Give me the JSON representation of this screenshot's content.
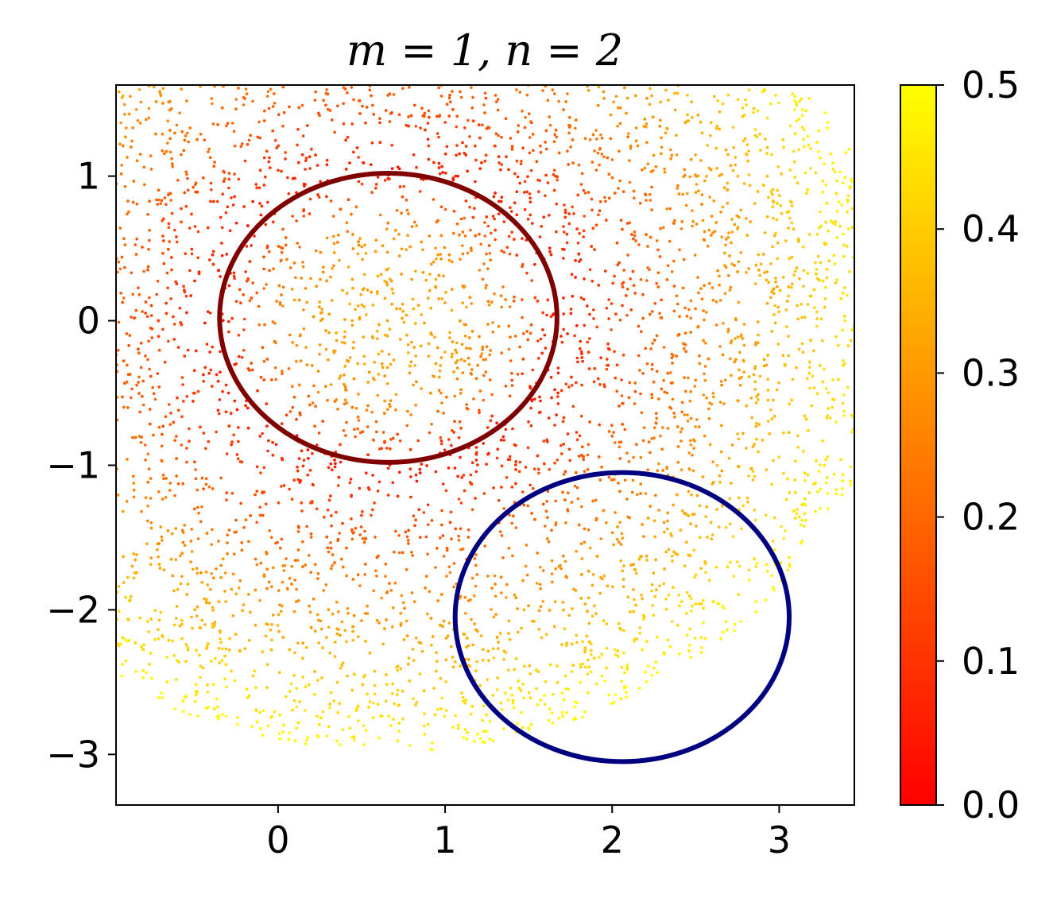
{
  "chart_data": {
    "type": "scatter",
    "title": "m = 1, n = 2",
    "xlabel": "",
    "ylabel": "",
    "xlim": [
      -0.97,
      3.45
    ],
    "ylim": [
      -3.35,
      1.63
    ],
    "x_ticks": [
      0,
      1,
      2,
      3
    ],
    "y_ticks": [
      -3,
      -2,
      -1,
      0,
      1
    ],
    "grid": false,
    "colorbar": {
      "colormap": "autumn",
      "range": [
        0.0,
        0.5
      ],
      "ticks": [
        "0.0",
        "0.1",
        "0.2",
        "0.3",
        "0.4",
        "0.5"
      ],
      "color_low": "#ff0000",
      "color_high": "#ffff00"
    },
    "scatter_region": {
      "description_values": "points colored by value within disk",
      "center": [
        0.66,
        0.02
      ],
      "radius": 3.0,
      "value_at_center": 0.33,
      "value_on_red_circle": 0.05,
      "value_at_edge": 0.5
    },
    "series": [
      {
        "type": "circle",
        "center": [
          0.66,
          0.02
        ],
        "radius_x": 1.01,
        "radius_y": 1.0,
        "color": "#800000"
      },
      {
        "type": "circle",
        "center": [
          2.06,
          -2.05
        ],
        "radius_x": 1.0,
        "radius_y": 1.0,
        "color": "#000080"
      }
    ]
  }
}
